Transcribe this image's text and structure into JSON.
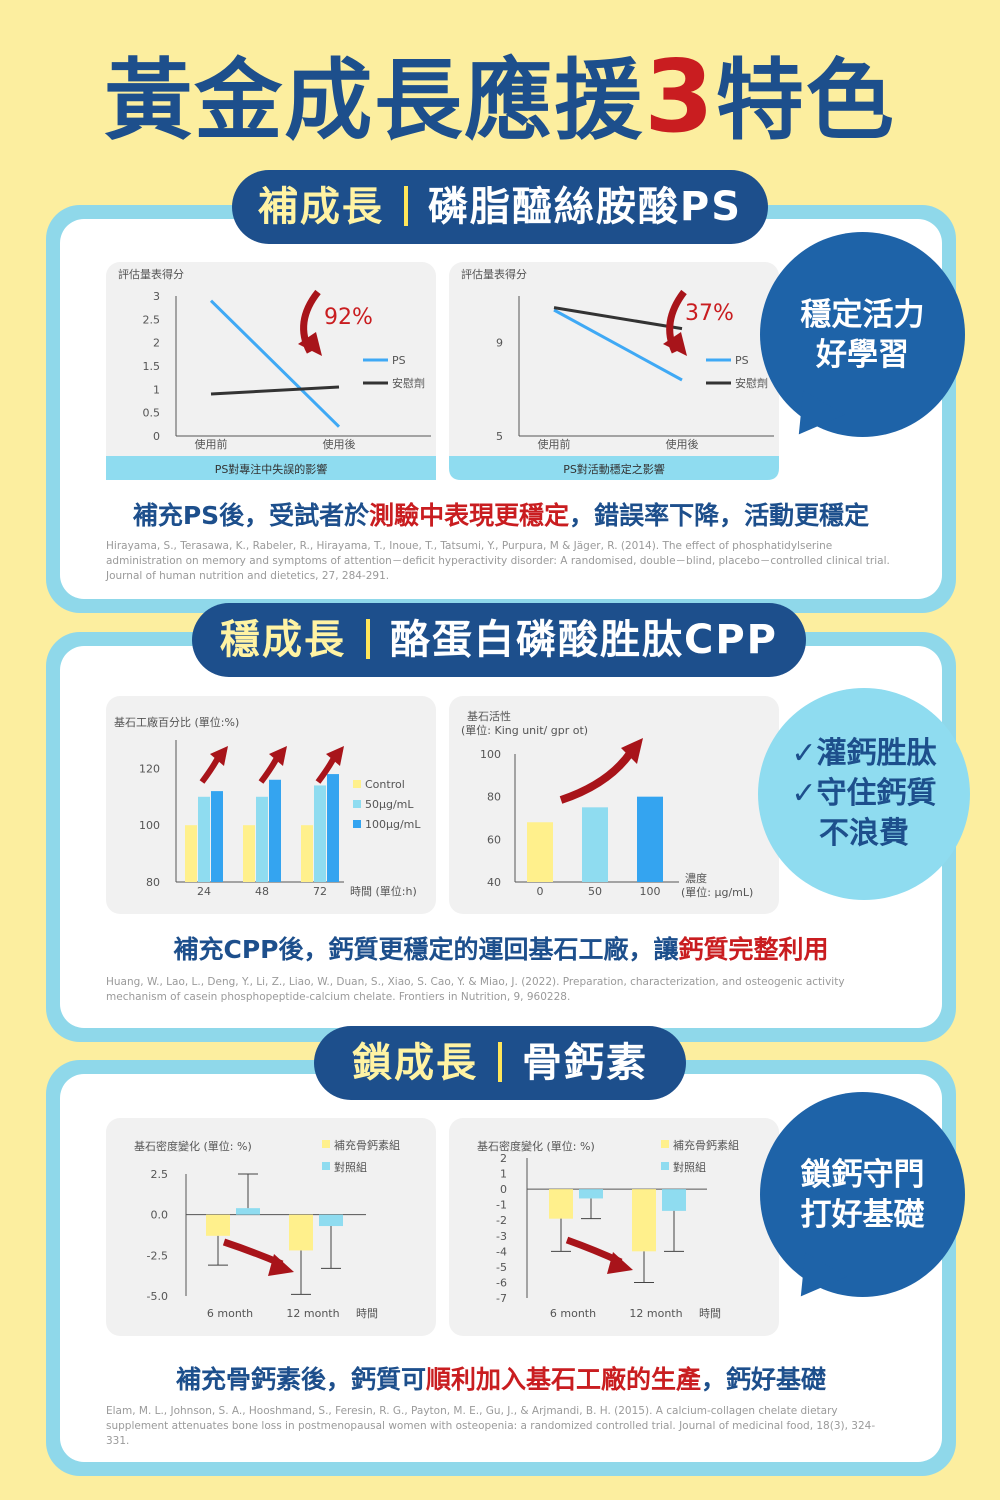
{
  "title": {
    "main": "黃金成長應援",
    "number": "3",
    "suffix": "特色"
  },
  "sections": [
    {
      "pill_a": "補成長",
      "pill_b": "磷脂醯絲胺酸PS",
      "badge": [
        "穩定活力",
        "好學習"
      ],
      "summary": {
        "pre": "補充PS後，受試者於",
        "hl": "測驗中表現更穩定",
        "post": "，錯誤率下降，活動更穩定"
      },
      "reference": "Hirayama, S., Terasawa, K., Rabeler, R., Hirayama, T., Inoue, T., Tatsumi, Y., Purpura, M & Jäger, R. (2014). The effect of phosphatidylserine administration on memory and symptoms of attention－deficit hyperactivity disorder: A randomised, double－blind, placebo－controlled clinical trial. Journal of human nutrition and dietetics, 27, 284-291."
    },
    {
      "pill_a": "穩成長",
      "pill_b": "酪蛋白磷酸胜肽CPP",
      "badge": [
        "✓灌鈣胜肽",
        "✓守住鈣質",
        "不浪費"
      ],
      "summary": {
        "pre": "補充CPP後，鈣質更穩定的運回基石工廠，讓",
        "hl": "鈣質完整利用",
        "post": ""
      },
      "reference": "Huang, W., Lao, L., Deng, Y., Li, Z., Liao, W., Duan, S., Xiao, S. Cao, Y. & Miao, J. (2022). Preparation, characterization, and osteogenic activity mechanism of casein phosphopeptide-calcium chelate. Frontiers in Nutrition, 9, 960228."
    },
    {
      "pill_a": "鎖成長",
      "pill_b": "骨鈣素",
      "badge": [
        "鎖鈣守門",
        "打好基礎"
      ],
      "summary": {
        "pre": "補充骨鈣素後，鈣質可",
        "hl": "順利加入基石工廠的生產",
        "post": "，鈣好基礎"
      },
      "reference": "Elam, M. L., Johnson, S. A., Hooshmand, S., Feresin, R. G., Payton, M. E., Gu, J., & Arjmandi, B. H. (2015). A calcium-collagen chelate dietary supplement attenuates bone loss in postmenopausal women with osteopenia: a randomized controlled trial. Journal of medicinal food, 18(3), 324-331."
    }
  ],
  "colors": {
    "navy": "#1d4f8c",
    "red": "#c91d20",
    "light_blue": "#8fd8ea",
    "ps_line": "#3fa9f5",
    "placebo_line": "#333333",
    "yellow": "#fff08c",
    "cyan": "#8fdcf0",
    "blue": "#34a4f0"
  },
  "chart_data": [
    {
      "type": "line",
      "ylabel": "評估量表得分",
      "categories": [
        "使用前",
        "使用後"
      ],
      "yticks": [
        "3",
        "2.5",
        "2",
        "1.5",
        "1",
        "0.5",
        "0"
      ],
      "ylim": [
        0,
        3
      ],
      "series": [
        {
          "name": "PS",
          "values": [
            2.9,
            0.2
          ]
        },
        {
          "name": "安慰劑",
          "values": [
            0.9,
            1.05
          ]
        }
      ],
      "annotation": "92%",
      "caption": "PS對專注中失誤的影響"
    },
    {
      "type": "line",
      "ylabel": "評估量表得分",
      "categories": [
        "使用前",
        "使用後"
      ],
      "yticks": [
        "9",
        "5"
      ],
      "ylim": [
        5,
        11
      ],
      "series": [
        {
          "name": "PS",
          "values": [
            10.4,
            7.4
          ]
        },
        {
          "name": "安慰劑",
          "values": [
            10.5,
            9.6
          ]
        }
      ],
      "annotation": "37%",
      "caption": "PS對活動穩定之影響"
    },
    {
      "type": "bar",
      "title": "基石工廠百分比 (單位:%)",
      "categories": [
        "24",
        "48",
        "72"
      ],
      "xlabel": "時間 (單位:h)",
      "yticks": [
        "120",
        "100",
        "80"
      ],
      "ylim": [
        80,
        130
      ],
      "series": [
        {
          "name": "Control",
          "values": [
            100,
            100,
            100
          ]
        },
        {
          "name": "50μg/mL",
          "values": [
            110,
            110,
            114
          ]
        },
        {
          "name": "100μg/mL",
          "values": [
            112,
            116,
            118
          ]
        }
      ]
    },
    {
      "type": "bar",
      "title": "基石活性",
      "subtitle": "(單位: King unit/ gpr ot)",
      "categories": [
        "0",
        "50",
        "100"
      ],
      "xlabel": "濃度",
      "xlabel2": "(單位: μg/mL)",
      "yticks": [
        "100",
        "80",
        "60",
        "40"
      ],
      "ylim": [
        40,
        100
      ],
      "values": [
        68,
        75,
        80
      ]
    },
    {
      "type": "bar",
      "title": "基石密度變化 (單位: %)",
      "categories": [
        "6 month",
        "12 month"
      ],
      "xlabel": "時間",
      "yticks": [
        "2.5",
        "0.0",
        "-2.5",
        "-5.0"
      ],
      "ylim": [
        -5,
        2.5
      ],
      "series": [
        {
          "name": "補充骨鈣素組",
          "values": [
            -1.3,
            -2.2
          ],
          "err": [
            1.8,
            2.7
          ]
        },
        {
          "name": "對照組",
          "values": [
            0.4,
            -0.7
          ],
          "err": [
            2.1,
            2.6
          ]
        }
      ]
    },
    {
      "type": "bar",
      "title": "基石密度變化 (單位: %)",
      "categories": [
        "6 month",
        "12 month"
      ],
      "xlabel": "時間",
      "yticks": [
        "2",
        "1",
        "0",
        "-1",
        "-2",
        "-3",
        "-4",
        "-5",
        "-6",
        "-7"
      ],
      "ylim": [
        -7,
        2
      ],
      "series": [
        {
          "name": "補充骨鈣素組",
          "values": [
            -1.9,
            -4.0
          ],
          "err": [
            2.1,
            2.0
          ]
        },
        {
          "name": "對照組",
          "values": [
            -0.6,
            -1.4
          ],
          "err": [
            1.3,
            2.6
          ]
        }
      ]
    }
  ]
}
